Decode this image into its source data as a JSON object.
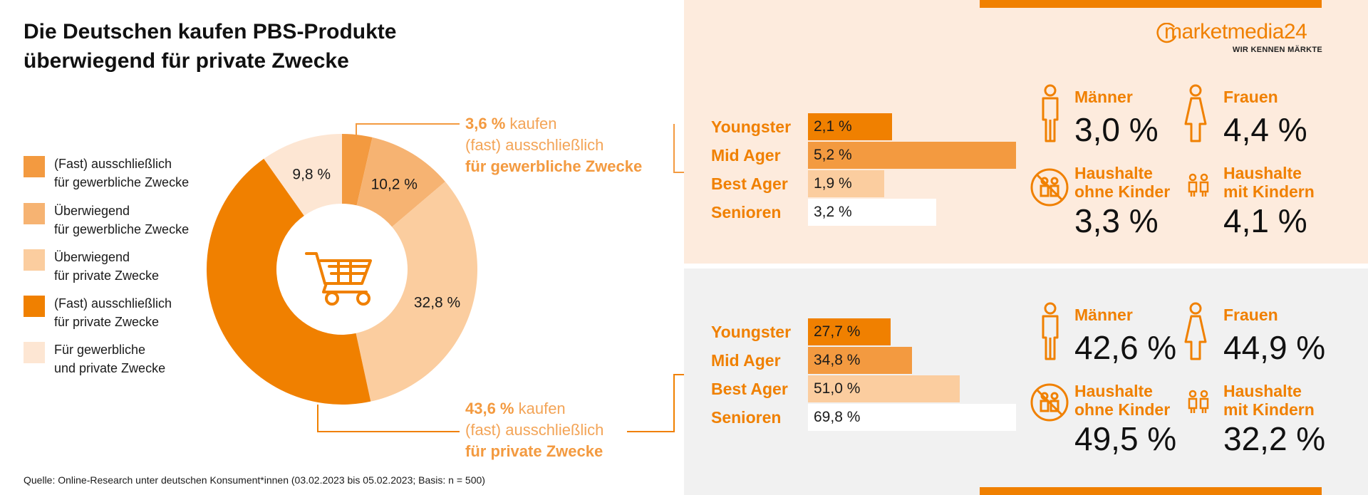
{
  "title_line1": "Die Deutschen kaufen PBS-Produkte",
  "title_line2": "überwiegend für private Zwecke",
  "legend": [
    {
      "line1": "(Fast) ausschließlich",
      "line2": "für gewerbliche Zwecke",
      "color": "#f39a40"
    },
    {
      "line1": "Überwiegend",
      "line2": "für gewerbliche Zwecke",
      "color": "#f6b372"
    },
    {
      "line1": "Überwiegend",
      "line2": "für private Zwecke",
      "color": "#fbcd9f"
    },
    {
      "line1": "(Fast) ausschließlich",
      "line2": "für private Zwecke",
      "color": "#f08000"
    },
    {
      "line1": "Für gewerbliche",
      "line2": "und private Zwecke",
      "color": "#fde6d3"
    }
  ],
  "chart_data": [
    {
      "type": "pie",
      "subtype": "donut",
      "center_icon": "shopping-cart-icon",
      "slices": [
        {
          "label": "(Fast) ausschließlich für gewerbliche Zwecke",
          "value": 3.6,
          "display": "",
          "color": "#f39a40"
        },
        {
          "label": "Überwiegend für gewerbliche Zwecke",
          "value": 10.2,
          "display": "10,2 %",
          "color": "#f6b372"
        },
        {
          "label": "Überwiegend für private Zwecke",
          "value": 32.8,
          "display": "32,8 %",
          "color": "#fbcd9f"
        },
        {
          "label": "(Fast) ausschließlich für private Zwecke",
          "value": 43.6,
          "display": "",
          "color": "#f08000"
        },
        {
          "label": "Für gewerbliche und private Zwecke",
          "value": 9.8,
          "display": "9,8 %",
          "color": "#fde6d3"
        }
      ]
    },
    {
      "type": "bar",
      "orientation": "horizontal",
      "categories": [
        "Youngster",
        "Mid Ager",
        "Best Ager",
        "Senioren"
      ],
      "values": [
        2.1,
        5.2,
        1.9,
        3.2
      ],
      "labels": [
        "2,1 %",
        "5,2 %",
        "1,9 %",
        "3,2 %"
      ],
      "colors": [
        "#f08000",
        "#f39a40",
        "#fbcd9f",
        "#ffffff"
      ]
    },
    {
      "type": "bar",
      "orientation": "horizontal",
      "categories": [
        "Youngster",
        "Mid Ager",
        "Best Ager",
        "Senioren"
      ],
      "values": [
        27.7,
        34.8,
        51.0,
        69.8
      ],
      "labels": [
        "27,7 %",
        "34,8 %",
        "51,0 %",
        "69,8 %"
      ],
      "colors": [
        "#f08000",
        "#f39a40",
        "#fbcd9f",
        "#ffffff"
      ]
    }
  ],
  "callout_top": {
    "pct": "3,6 %",
    "rest": " kaufen",
    "line2": "(fast) ausschließlich",
    "line3": "für gewerbliche Zwecke"
  },
  "callout_bottom": {
    "pct": "43,6 %",
    "rest": " kaufen",
    "line2": "(fast) ausschließlich",
    "line3": "für private Zwecke"
  },
  "demo_top": {
    "maenner_label": "Männer",
    "maenner_val": "3,0 %",
    "frauen_label": "Frauen",
    "frauen_val": "4,4 %",
    "ohne_label1": "Haushalte",
    "ohne_label2": "ohne Kinder",
    "ohne_val": "3,3 %",
    "mit_label1": "Haushalte",
    "mit_label2": "mit Kindern",
    "mit_val": "4,1 %"
  },
  "demo_bottom": {
    "maenner_label": "Männer",
    "maenner_val": "42,6 %",
    "frauen_label": "Frauen",
    "frauen_val": "44,9 %",
    "ohne_label1": "Haushalte",
    "ohne_label2": "ohne Kinder",
    "ohne_val": "49,5 %",
    "mit_label1": "Haushalte",
    "mit_label2": "mit Kindern",
    "mit_val": "32,2 %"
  },
  "logo_main": "marketmedia24",
  "logo_sub": "WIR KENNEN MÄRKTE",
  "source": "Quelle: Online-Research unter deutschen Konsument*innen (03.02.2023 bis 05.02.2023; Basis: n = 500)"
}
